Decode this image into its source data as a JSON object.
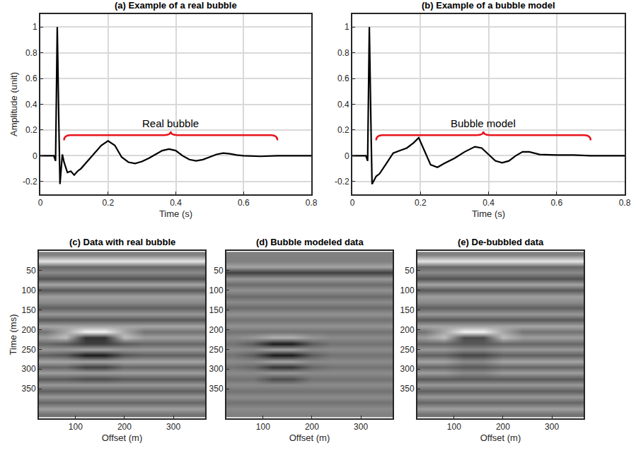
{
  "chart_data": [
    {
      "type": "line",
      "title": "(a) Example of a real bubble",
      "x_label": "Time (s)",
      "y_label": "Amplitude (unit)",
      "x": [
        0,
        0.04,
        0.045,
        0.05,
        0.055,
        0.058,
        0.065,
        0.07,
        0.08,
        0.09,
        0.1,
        0.11,
        0.12,
        0.14,
        0.16,
        0.18,
        0.2,
        0.22,
        0.24,
        0.26,
        0.28,
        0.3,
        0.32,
        0.34,
        0.36,
        0.38,
        0.4,
        0.42,
        0.44,
        0.46,
        0.48,
        0.5,
        0.52,
        0.54,
        0.56,
        0.58,
        0.6,
        0.65,
        0.7,
        0.8
      ],
      "values": [
        0,
        0,
        -0.04,
        1.0,
        0.2,
        -0.22,
        0.01,
        -0.05,
        -0.13,
        -0.12,
        -0.15,
        -0.12,
        -0.1,
        -0.04,
        0.02,
        0.08,
        0.115,
        0.08,
        -0.01,
        -0.05,
        -0.06,
        -0.045,
        -0.02,
        0.01,
        0.04,
        0.052,
        0.04,
        0.0,
        -0.03,
        -0.04,
        -0.03,
        -0.01,
        0.01,
        0.02,
        0.015,
        0.005,
        0,
        -0.005,
        0,
        0
      ],
      "color": "#000000",
      "xlim": [
        0,
        0.8
      ],
      "ylim": [
        -0.3,
        1.1
      ],
      "xticks": [
        0,
        0.2,
        0.4,
        0.6,
        0.8
      ],
      "yticks": [
        -0.2,
        0,
        0.2,
        0.4,
        0.6,
        0.8,
        1
      ],
      "grid": true,
      "annotations": [
        {
          "text": "Real bubble",
          "x": [
            0.07,
            0.7
          ],
          "y": 0.16,
          "color": "#e8141c"
        }
      ]
    },
    {
      "type": "line",
      "title": "(b) Example of a bubble model",
      "x_label": "Time (s)",
      "x": [
        0,
        0.04,
        0.045,
        0.05,
        0.055,
        0.058,
        0.07,
        0.08,
        0.1,
        0.12,
        0.14,
        0.16,
        0.18,
        0.195,
        0.21,
        0.23,
        0.25,
        0.27,
        0.3,
        0.33,
        0.36,
        0.38,
        0.4,
        0.42,
        0.44,
        0.46,
        0.48,
        0.5,
        0.52,
        0.55,
        0.6,
        0.65,
        0.7,
        0.8
      ],
      "values": [
        0,
        0,
        -0.04,
        1.0,
        0.2,
        -0.22,
        -0.16,
        -0.14,
        -0.06,
        0.02,
        0.04,
        0.06,
        0.1,
        0.14,
        0.05,
        -0.07,
        -0.09,
        -0.06,
        -0.02,
        0.03,
        0.07,
        0.06,
        0.01,
        -0.04,
        -0.055,
        -0.04,
        0.0,
        0.03,
        0.03,
        0.01,
        0.005,
        0.005,
        0,
        0
      ],
      "color": "#000000",
      "xlim": [
        0,
        0.8
      ],
      "ylim": [
        -0.3,
        1.1
      ],
      "xticks": [
        0,
        0.2,
        0.4,
        0.6,
        0.8
      ],
      "yticks": [
        -0.2,
        0,
        0.2,
        0.4,
        0.6,
        0.8,
        1
      ],
      "grid": true,
      "annotations": [
        {
          "text": "Bubble model",
          "x": [
            0.07,
            0.7
          ],
          "y": 0.16,
          "color": "#e8141c"
        }
      ]
    },
    {
      "type": "heatmap",
      "title": "(c) Data with real bubble",
      "x_label": "Offset (m)",
      "y_label": "Time (ms)",
      "x": [
        40,
        80,
        120,
        160,
        200,
        240,
        280,
        320,
        360
      ],
      "y": [
        10,
        25,
        40,
        55,
        70,
        85,
        100,
        115,
        130,
        145,
        160,
        175,
        190,
        205,
        220,
        235,
        250,
        265,
        280,
        295,
        310,
        325,
        340,
        355,
        370,
        385,
        400,
        415
      ],
      "z": [
        [
          0,
          0,
          0,
          0,
          0,
          0,
          0,
          0,
          0
        ],
        [
          0.8,
          0.8,
          0.8,
          0.8,
          0.8,
          0.8,
          0.8,
          0.8,
          0.8
        ],
        [
          -0.2,
          -0.2,
          -0.2,
          -0.2,
          -0.2,
          -0.2,
          -0.2,
          -0.2,
          -0.2
        ],
        [
          0.1,
          0.1,
          0.1,
          0.1,
          0.1,
          0.1,
          0.1,
          0.1,
          0.1
        ],
        [
          -0.35,
          -0.35,
          -0.35,
          -0.35,
          -0.35,
          -0.35,
          -0.35,
          -0.35,
          -0.35
        ],
        [
          0.3,
          0.3,
          0.3,
          0.3,
          0.3,
          0.3,
          0.3,
          0.3,
          0.3
        ],
        [
          -0.3,
          -0.3,
          -0.3,
          -0.3,
          -0.3,
          -0.3,
          -0.3,
          -0.3,
          -0.3
        ],
        [
          0.25,
          0.25,
          0.25,
          0.25,
          0.25,
          0.25,
          0.25,
          0.25,
          0.25
        ],
        [
          0.1,
          0.1,
          0.1,
          0.1,
          0.1,
          0.1,
          0.1,
          0.1,
          0.1
        ],
        [
          -0.25,
          -0.25,
          -0.25,
          -0.25,
          -0.25,
          -0.25,
          -0.25,
          -0.25,
          -0.25
        ],
        [
          0.2,
          0.2,
          0.2,
          0.2,
          0.2,
          0.2,
          0.2,
          0.2,
          0.2
        ],
        [
          -0.3,
          -0.3,
          -0.3,
          -0.3,
          -0.3,
          -0.3,
          -0.3,
          -0.3,
          -0.3
        ],
        [
          0.3,
          0.3,
          0.3,
          0.3,
          0.3,
          0.3,
          0.3,
          0.3,
          0.3
        ],
        [
          -0.1,
          0.3,
          0.9,
          0.9,
          0.3,
          -0.1,
          -0.1,
          -0.1,
          -0.1
        ],
        [
          0.25,
          0.5,
          -0.6,
          -0.6,
          0.5,
          0.25,
          0.25,
          0.25,
          0.25
        ],
        [
          -0.2,
          -0.3,
          -0.5,
          -0.5,
          -0.3,
          -0.2,
          -0.2,
          -0.2,
          -0.2
        ],
        [
          0.2,
          0.2,
          0.3,
          0.3,
          0.2,
          0.2,
          0.2,
          0.2,
          0.2
        ],
        [
          -0.25,
          -0.35,
          -0.8,
          -0.8,
          -0.35,
          -0.25,
          -0.25,
          -0.25,
          -0.25
        ],
        [
          0.3,
          0.3,
          0.3,
          0.3,
          0.3,
          0.3,
          0.3,
          0.3,
          0.3
        ],
        [
          -0.2,
          -0.2,
          -0.5,
          -0.5,
          -0.2,
          -0.2,
          -0.2,
          -0.2,
          -0.2
        ],
        [
          0.25,
          0.25,
          0.25,
          0.25,
          0.25,
          0.25,
          0.25,
          0.25,
          0.25
        ],
        [
          -0.3,
          -0.3,
          -0.4,
          -0.4,
          -0.3,
          -0.3,
          -0.3,
          -0.3,
          -0.3
        ],
        [
          0.2,
          0.2,
          0.2,
          0.2,
          0.2,
          0.2,
          0.2,
          0.2,
          0.2
        ],
        [
          -0.25,
          -0.25,
          -0.25,
          -0.25,
          -0.25,
          -0.25,
          -0.25,
          -0.25,
          -0.25
        ],
        [
          0.2,
          0.2,
          0.2,
          0.2,
          0.2,
          0.2,
          0.2,
          0.2,
          0.2
        ],
        [
          -0.2,
          -0.2,
          -0.2,
          -0.2,
          -0.2,
          -0.2,
          -0.2,
          -0.2,
          -0.2
        ],
        [
          0.25,
          0.25,
          0.25,
          0.25,
          0.25,
          0.25,
          0.25,
          0.25,
          0.25
        ],
        [
          -0.1,
          -0.1,
          -0.1,
          -0.1,
          -0.1,
          -0.1,
          -0.1,
          -0.1,
          -0.1
        ]
      ],
      "zlim": [
        -1,
        1
      ],
      "xlim": [
        25,
        365
      ],
      "ylim": [
        425,
        0
      ],
      "xticks": [
        100,
        200,
        300
      ],
      "yticks": [
        50,
        100,
        150,
        200,
        250,
        300,
        350
      ]
    },
    {
      "type": "heatmap",
      "title": "(d) Bubble modeled data",
      "x_label": "Offset (m)",
      "x": [
        40,
        80,
        120,
        160,
        200,
        240,
        280,
        320,
        360
      ],
      "y": [
        10,
        25,
        40,
        55,
        70,
        85,
        100,
        115,
        130,
        145,
        160,
        175,
        190,
        205,
        220,
        235,
        250,
        265,
        280,
        295,
        310,
        325,
        340,
        355,
        370,
        385,
        400,
        415
      ],
      "z": [
        [
          0,
          0,
          0,
          0,
          0,
          0,
          0,
          0,
          0
        ],
        [
          0,
          0,
          0,
          0,
          0,
          0,
          0,
          0,
          0
        ],
        [
          0.3,
          0.3,
          0.3,
          0.3,
          0.3,
          0.3,
          0.3,
          0.3,
          0.3
        ],
        [
          -0.5,
          -0.5,
          -0.5,
          -0.5,
          -0.5,
          -0.5,
          -0.5,
          -0.5,
          -0.5
        ],
        [
          0.2,
          0.2,
          0.2,
          0.2,
          0.2,
          0.2,
          0.2,
          0.2,
          0.2
        ],
        [
          -0.15,
          -0.15,
          -0.15,
          -0.15,
          -0.15,
          -0.15,
          -0.15,
          -0.15,
          -0.15
        ],
        [
          0.15,
          0.15,
          0.15,
          0.15,
          0.15,
          0.15,
          0.15,
          0.15,
          0.15
        ],
        [
          -0.15,
          -0.15,
          -0.15,
          -0.15,
          -0.15,
          -0.15,
          -0.15,
          -0.15,
          -0.15
        ],
        [
          0.1,
          0.1,
          0.1,
          0.1,
          0.1,
          0.1,
          0.1,
          0.1,
          0.1
        ],
        [
          -0.15,
          -0.15,
          -0.15,
          -0.15,
          -0.15,
          -0.15,
          -0.15,
          -0.15,
          -0.15
        ],
        [
          0.15,
          0.15,
          0.15,
          0.15,
          0.15,
          0.15,
          0.15,
          0.15,
          0.15
        ],
        [
          -0.1,
          -0.1,
          -0.1,
          -0.1,
          -0.1,
          -0.1,
          -0.1,
          -0.1,
          -0.1
        ],
        [
          0.15,
          0.15,
          0.15,
          0.15,
          0.15,
          0.15,
          0.15,
          0.15,
          0.15
        ],
        [
          -0.1,
          -0.1,
          -0.1,
          -0.1,
          -0.1,
          -0.1,
          -0.1,
          -0.1,
          -0.1
        ],
        [
          0.1,
          0.2,
          0.4,
          0.4,
          0.2,
          0.1,
          0.1,
          0.1,
          0.1
        ],
        [
          -0.1,
          -0.3,
          -0.8,
          -0.8,
          -0.3,
          -0.1,
          -0.1,
          -0.1,
          -0.1
        ],
        [
          0.1,
          0.1,
          0.3,
          0.3,
          0.1,
          0.1,
          0.1,
          0.1,
          0.1
        ],
        [
          -0.1,
          -0.3,
          -0.8,
          -0.8,
          -0.3,
          -0.1,
          -0.1,
          -0.1,
          -0.1
        ],
        [
          0.1,
          0.1,
          0.3,
          0.3,
          0.1,
          0.1,
          0.1,
          0.1,
          0.1
        ],
        [
          -0.1,
          -0.2,
          -0.6,
          -0.6,
          -0.2,
          -0.1,
          -0.1,
          -0.1,
          -0.1
        ],
        [
          0.1,
          0.1,
          0.2,
          0.2,
          0.1,
          0.1,
          0.1,
          0.1,
          0.1
        ],
        [
          -0.1,
          -0.1,
          -0.4,
          -0.4,
          -0.1,
          -0.1,
          -0.1,
          -0.1,
          -0.1
        ],
        [
          0.1,
          0.1,
          0.1,
          0.1,
          0.1,
          0.1,
          0.1,
          0.1,
          0.1
        ],
        [
          -0.1,
          -0.1,
          -0.1,
          -0.1,
          -0.1,
          -0.1,
          -0.1,
          -0.1,
          -0.1
        ],
        [
          0.1,
          0.1,
          0.1,
          0.1,
          0.1,
          0.1,
          0.1,
          0.1,
          0.1
        ],
        [
          -0.1,
          -0.1,
          -0.1,
          -0.1,
          -0.1,
          -0.1,
          -0.1,
          -0.1,
          -0.1
        ],
        [
          0.1,
          0.1,
          0.1,
          0.1,
          0.1,
          0.1,
          0.1,
          0.1,
          0.1
        ],
        [
          0,
          0,
          0,
          0,
          0,
          0,
          0,
          0,
          0
        ]
      ],
      "zlim": [
        -1,
        1
      ],
      "xlim": [
        25,
        365
      ],
      "ylim": [
        425,
        0
      ],
      "xticks": [
        100,
        200,
        300
      ],
      "yticks": [
        50,
        100,
        150,
        200,
        250,
        300,
        350
      ]
    },
    {
      "type": "heatmap",
      "title": "(e) De-bubbled data",
      "x_label": "Offset (m)",
      "x": [
        40,
        80,
        120,
        160,
        200,
        240,
        280,
        320,
        360
      ],
      "y": [
        10,
        25,
        40,
        55,
        70,
        85,
        100,
        115,
        130,
        145,
        160,
        175,
        190,
        205,
        220,
        235,
        250,
        265,
        280,
        295,
        310,
        325,
        340,
        355,
        370,
        385,
        400,
        415
      ],
      "z": [
        [
          0,
          0,
          0,
          0,
          0,
          0,
          0,
          0,
          0
        ],
        [
          0.8,
          0.8,
          0.8,
          0.8,
          0.8,
          0.8,
          0.8,
          0.8,
          0.8
        ],
        [
          -0.2,
          -0.2,
          -0.2,
          -0.2,
          -0.2,
          -0.2,
          -0.2,
          -0.2,
          -0.2
        ],
        [
          0.1,
          0.1,
          0.1,
          0.1,
          0.1,
          0.1,
          0.1,
          0.1,
          0.1
        ],
        [
          -0.35,
          -0.35,
          -0.35,
          -0.35,
          -0.35,
          -0.35,
          -0.35,
          -0.35,
          -0.35
        ],
        [
          0.3,
          0.3,
          0.3,
          0.3,
          0.3,
          0.3,
          0.3,
          0.3,
          0.3
        ],
        [
          -0.3,
          -0.3,
          -0.3,
          -0.3,
          -0.3,
          -0.3,
          -0.3,
          -0.3,
          -0.3
        ],
        [
          0.25,
          0.25,
          0.25,
          0.25,
          0.25,
          0.25,
          0.25,
          0.25,
          0.25
        ],
        [
          0.1,
          0.1,
          0.1,
          0.1,
          0.1,
          0.1,
          0.1,
          0.1,
          0.1
        ],
        [
          -0.25,
          -0.25,
          -0.25,
          -0.25,
          -0.25,
          -0.25,
          -0.25,
          -0.25,
          -0.25
        ],
        [
          0.2,
          0.2,
          0.2,
          0.2,
          0.2,
          0.2,
          0.2,
          0.2,
          0.2
        ],
        [
          -0.3,
          -0.3,
          -0.3,
          -0.3,
          -0.3,
          -0.3,
          -0.3,
          -0.3,
          -0.3
        ],
        [
          0.3,
          0.3,
          0.3,
          0.3,
          0.3,
          0.3,
          0.3,
          0.3,
          0.3
        ],
        [
          -0.1,
          0.3,
          0.9,
          0.9,
          0.3,
          -0.1,
          -0.1,
          -0.1,
          -0.1
        ],
        [
          0.25,
          0.5,
          -0.4,
          -0.4,
          0.5,
          0.25,
          0.25,
          0.25,
          0.25
        ],
        [
          -0.2,
          -0.2,
          -0.3,
          -0.3,
          -0.2,
          -0.2,
          -0.2,
          -0.2,
          -0.2
        ],
        [
          0.2,
          0.2,
          0.1,
          0.1,
          0.2,
          0.2,
          0.2,
          0.2,
          0.2
        ],
        [
          -0.25,
          -0.25,
          -0.45,
          -0.45,
          -0.25,
          -0.25,
          -0.25,
          -0.25,
          -0.25
        ],
        [
          0.3,
          0.3,
          0.1,
          0.1,
          0.3,
          0.3,
          0.3,
          0.3,
          0.3
        ],
        [
          -0.2,
          -0.2,
          -0.3,
          -0.3,
          -0.2,
          -0.2,
          -0.2,
          -0.2,
          -0.2
        ],
        [
          0.25,
          0.25,
          0.1,
          0.1,
          0.25,
          0.25,
          0.25,
          0.25,
          0.25
        ],
        [
          -0.3,
          -0.3,
          -0.3,
          -0.3,
          -0.3,
          -0.3,
          -0.3,
          -0.3,
          -0.3
        ],
        [
          0.2,
          0.2,
          0.2,
          0.2,
          0.2,
          0.2,
          0.2,
          0.2,
          0.2
        ],
        [
          -0.25,
          -0.25,
          -0.25,
          -0.25,
          -0.25,
          -0.25,
          -0.25,
          -0.25,
          -0.25
        ],
        [
          0.2,
          0.2,
          0.2,
          0.2,
          0.2,
          0.2,
          0.2,
          0.2,
          0.2
        ],
        [
          -0.2,
          -0.2,
          -0.2,
          -0.2,
          -0.2,
          -0.2,
          -0.2,
          -0.2,
          -0.2
        ],
        [
          0.25,
          0.25,
          0.25,
          0.25,
          0.25,
          0.25,
          0.25,
          0.25,
          0.25
        ],
        [
          -0.1,
          -0.1,
          -0.1,
          -0.1,
          -0.1,
          -0.1,
          -0.1,
          -0.1,
          -0.1
        ]
      ],
      "zlim": [
        -1,
        1
      ],
      "xlim": [
        25,
        365
      ],
      "ylim": [
        425,
        0
      ],
      "xticks": [
        100,
        200,
        300
      ],
      "yticks": [
        50,
        100,
        150,
        200,
        250,
        300,
        350
      ]
    }
  ]
}
